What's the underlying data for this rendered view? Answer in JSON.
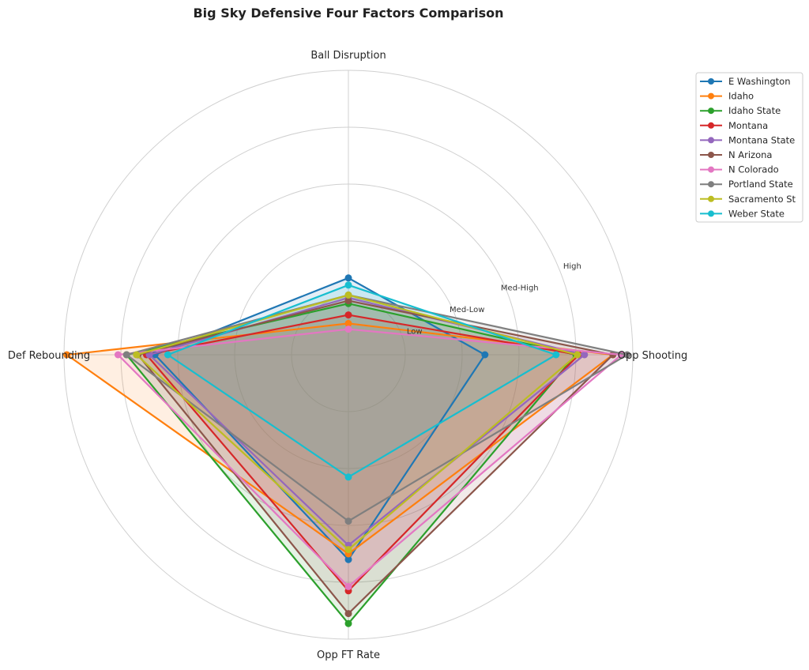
{
  "chart_data": {
    "type": "radar",
    "title": "Big Sky Defensive Four Factors Comparison",
    "axes": [
      "Ball Disruption",
      "Def Rebounding",
      "Opp FT Rate",
      "Opp Shooting"
    ],
    "rlim": [
      0,
      1
    ],
    "rticks": [
      0.2,
      0.4,
      0.6,
      0.8
    ],
    "rtick_labels": [
      "Low",
      "Med-Low",
      "Med-High",
      "High"
    ],
    "grid": true,
    "legend_position": "upper-right-outside",
    "series": [
      {
        "name": "E Washington",
        "color": "#1f77b4",
        "values": [
          0.27,
          0.68,
          0.72,
          0.48
        ]
      },
      {
        "name": "Idaho",
        "color": "#ff7f0e",
        "values": [
          0.11,
          0.99,
          0.7,
          0.93
        ]
      },
      {
        "name": "Idaho State",
        "color": "#2ca02c",
        "values": [
          0.18,
          0.78,
          0.945,
          0.8
        ]
      },
      {
        "name": "Montana",
        "color": "#d62728",
        "values": [
          0.14,
          0.71,
          0.83,
          0.81
        ]
      },
      {
        "name": "Montana State",
        "color": "#9467bd",
        "values": [
          0.2,
          0.7,
          0.67,
          0.83
        ]
      },
      {
        "name": "N Arizona",
        "color": "#8c564b",
        "values": [
          0.19,
          0.74,
          0.91,
          0.93
        ]
      },
      {
        "name": "N Colorado",
        "color": "#e377c2",
        "values": [
          0.09,
          0.81,
          0.815,
          0.96
        ]
      },
      {
        "name": "Portland State",
        "color": "#7f7f7f",
        "values": [
          0.21,
          0.78,
          0.585,
          0.98
        ]
      },
      {
        "name": "Sacramento St",
        "color": "#bcbd22",
        "values": [
          0.21,
          0.745,
          0.685,
          0.805
        ]
      },
      {
        "name": "Weber State",
        "color": "#17becf",
        "values": [
          0.245,
          0.635,
          0.43,
          0.73
        ]
      }
    ]
  }
}
